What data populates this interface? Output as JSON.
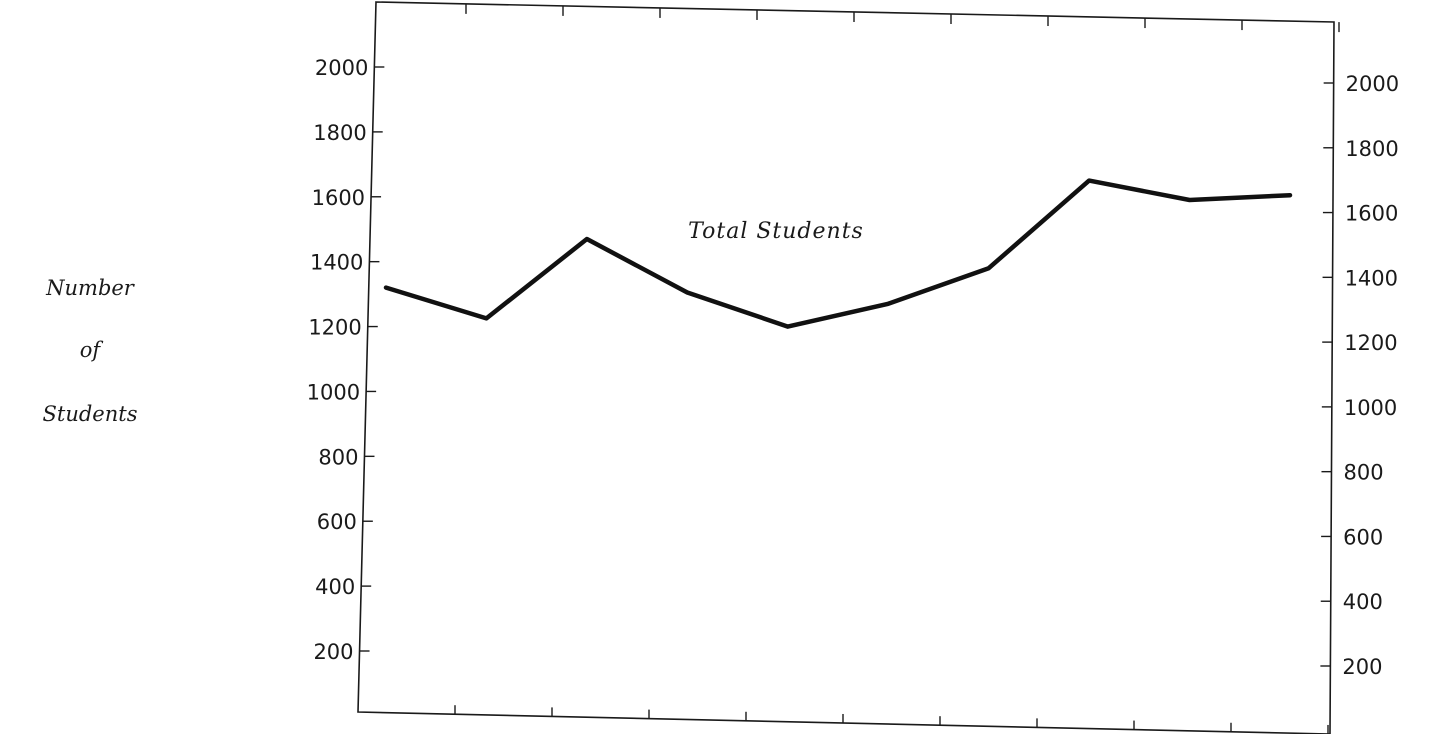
{
  "chart_data": {
    "type": "line",
    "ylabel": [
      "Number",
      "of",
      "Students"
    ],
    "ylim": [
      0,
      2200
    ],
    "y_ticks": [
      200,
      400,
      600,
      800,
      1000,
      1200,
      1400,
      1600,
      1800,
      2000
    ],
    "y_tick_labels": [
      "200",
      "400",
      "600",
      "800",
      "1000",
      "1200",
      "1400",
      "1600",
      "1800",
      "2000"
    ],
    "right_axis": {
      "ylim": [
        0,
        2100
      ],
      "y_ticks": [
        200,
        400,
        600,
        800,
        1000,
        1200,
        1400,
        1600,
        1800,
        2000
      ],
      "y_tick_labels": [
        "200",
        "400",
        "600",
        "800",
        "1000",
        "1200",
        "1400",
        "1600",
        "1800",
        "2000"
      ]
    },
    "x_tick_count": 10,
    "grid": false,
    "series": [
      {
        "name": "Total Students",
        "values": [
          1320,
          1225,
          1470,
          1305,
          1200,
          1270,
          1380,
          1650,
          1590,
          1605
        ]
      }
    ]
  }
}
